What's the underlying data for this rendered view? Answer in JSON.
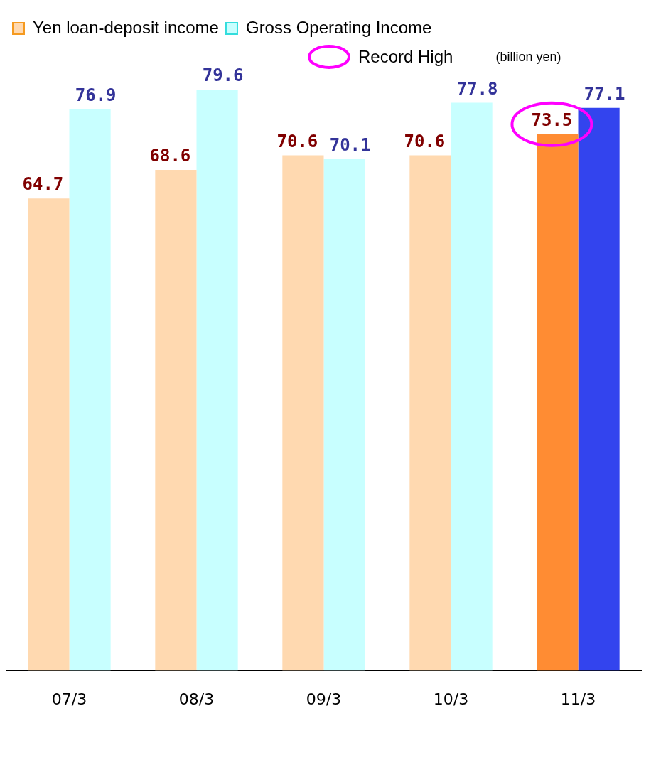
{
  "chart_data": {
    "type": "bar",
    "categories": [
      "07/3",
      "08/3",
      "09/3",
      "10/3",
      "11/3"
    ],
    "series": [
      {
        "name": "Yen loan-deposit income",
        "color": "#ffd9b0",
        "colors": [
          "#ffd9b0",
          "#ffd9b0",
          "#ffd9b0",
          "#ffd9b0",
          "#ff8c33"
        ],
        "values": [
          64.7,
          68.6,
          70.6,
          70.6,
          73.5
        ]
      },
      {
        "name": "Gross Operating Income",
        "color": "#c8ffff",
        "colors": [
          "#c8ffff",
          "#c8ffff",
          "#c8ffff",
          "#c8ffff",
          "#3344ee"
        ],
        "values": [
          76.9,
          79.6,
          70.1,
          77.8,
          77.1
        ]
      }
    ],
    "data_labels": true,
    "legend": "top left",
    "grid": false,
    "tick_labels": "x",
    "annotations": [
      "Record High",
      "(billion yen)"
    ]
  }
}
